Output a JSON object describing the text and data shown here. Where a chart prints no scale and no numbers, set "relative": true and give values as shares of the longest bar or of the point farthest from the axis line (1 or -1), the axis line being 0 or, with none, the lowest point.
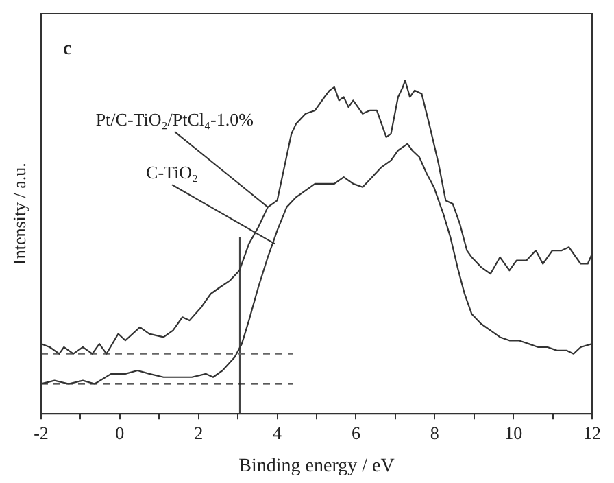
{
  "chart_data": {
    "type": "line",
    "relative": true,
    "xlabel": "Binding energy / eV",
    "ylabel": "Intensity / a.u.",
    "xlim": [
      -2,
      12
    ],
    "xticks": [
      -2,
      {
        "value": -1,
        "label": null
      },
      0,
      {
        "value": 1,
        "label": null
      },
      2,
      {
        "value": 3,
        "label": null
      },
      4,
      {
        "value": 5,
        "label": null
      },
      6,
      {
        "value": 7,
        "label": null
      },
      8,
      {
        "value": 9,
        "label": null
      },
      10,
      {
        "value": 11,
        "label": null
      },
      12
    ],
    "grid": false,
    "legend": false,
    "marker": "none",
    "line_style": "solid",
    "annotations": [
      "c",
      {
        "text": "Pt/C-TiO₂/PtCl₄-1.0%",
        "x": 3.76,
        "y": 0.62
      },
      {
        "text": "C-TiO₂",
        "x": 3.94,
        "y": 0.51
      }
    ],
    "series": [
      {
        "color": "#333333",
        "x": [
          -2.0,
          -1.78,
          -1.54,
          -1.42,
          -1.18,
          -0.94,
          -0.7,
          -0.52,
          -0.34,
          -0.04,
          0.14,
          0.51,
          0.75,
          1.11,
          1.35,
          1.59,
          1.77,
          2.07,
          2.31,
          2.55,
          2.8,
          3.04,
          3.28,
          3.52,
          3.76,
          4.0,
          4.18,
          4.36,
          4.48,
          4.72,
          4.96,
          5.2,
          5.33,
          5.45,
          5.57,
          5.69,
          5.81,
          5.93,
          6.17,
          6.35,
          6.53,
          6.77,
          6.89,
          7.07,
          7.19,
          7.25,
          7.37,
          7.49,
          7.67,
          7.86,
          8.1,
          8.28,
          8.46,
          8.64,
          8.82,
          8.94,
          9.18,
          9.42,
          9.66,
          9.9,
          10.08,
          10.33,
          10.57,
          10.75,
          10.99,
          11.23,
          11.41,
          11.71,
          11.89,
          12.0
        ],
        "values": [
          0.21,
          0.2,
          0.18,
          0.2,
          0.18,
          0.2,
          0.18,
          0.21,
          0.18,
          0.24,
          0.22,
          0.26,
          0.24,
          0.23,
          0.25,
          0.29,
          0.28,
          0.32,
          0.36,
          0.38,
          0.4,
          0.43,
          0.51,
          0.56,
          0.62,
          0.64,
          0.74,
          0.84,
          0.87,
          0.9,
          0.91,
          0.95,
          0.97,
          0.98,
          0.94,
          0.95,
          0.92,
          0.94,
          0.9,
          0.91,
          0.91,
          0.83,
          0.84,
          0.95,
          0.98,
          1.0,
          0.95,
          0.97,
          0.96,
          0.87,
          0.75,
          0.64,
          0.63,
          0.57,
          0.49,
          0.47,
          0.44,
          0.42,
          0.47,
          0.43,
          0.46,
          0.46,
          0.49,
          0.45,
          0.49,
          0.49,
          0.5,
          0.45,
          0.45,
          0.48
        ]
      },
      {
        "color": "#333333",
        "x": [
          -2.0,
          -1.66,
          -1.3,
          -0.94,
          -0.64,
          -0.22,
          0.14,
          0.45,
          0.75,
          1.11,
          1.47,
          1.83,
          2.19,
          2.37,
          2.61,
          2.92,
          3.1,
          3.28,
          3.52,
          3.76,
          4.0,
          4.24,
          4.48,
          4.72,
          4.96,
          5.2,
          5.45,
          5.69,
          5.93,
          6.17,
          6.41,
          6.65,
          6.89,
          7.07,
          7.31,
          7.43,
          7.61,
          7.8,
          7.98,
          8.22,
          8.4,
          8.58,
          8.76,
          8.94,
          9.18,
          9.42,
          9.66,
          9.9,
          10.14,
          10.39,
          10.63,
          10.87,
          11.11,
          11.35,
          11.53,
          11.71,
          12.0
        ],
        "values": [
          0.09,
          0.1,
          0.09,
          0.1,
          0.09,
          0.12,
          0.12,
          0.13,
          0.12,
          0.11,
          0.11,
          0.11,
          0.12,
          0.11,
          0.13,
          0.17,
          0.21,
          0.28,
          0.38,
          0.47,
          0.55,
          0.62,
          0.65,
          0.67,
          0.69,
          0.69,
          0.69,
          0.71,
          0.69,
          0.68,
          0.71,
          0.74,
          0.76,
          0.79,
          0.81,
          0.79,
          0.77,
          0.72,
          0.68,
          0.6,
          0.53,
          0.44,
          0.36,
          0.3,
          0.27,
          0.25,
          0.23,
          0.22,
          0.22,
          0.21,
          0.2,
          0.2,
          0.19,
          0.19,
          0.18,
          0.2,
          0.21
        ]
      },
      {
        "color": "#666666",
        "line_style": "dashed",
        "x": [
          -2,
          4.4
        ],
        "values": [
          0.18,
          0.18
        ]
      },
      {
        "color": "#222222",
        "line_style": "dashed",
        "x": [
          -2,
          4.4
        ],
        "values": [
          0.09,
          0.09
        ]
      },
      {
        "color": "#444444",
        "x": [
          3.05,
          3.05
        ],
        "values": [
          0,
          0.53
        ]
      }
    ]
  }
}
